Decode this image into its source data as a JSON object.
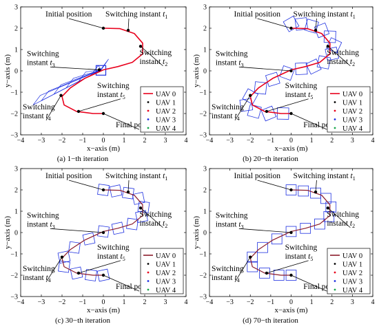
{
  "chart_data": [
    {
      "type": "line",
      "caption": "(a) 1−th iteration",
      "xlabel": "x−axis (m)",
      "ylabel": "y−axis (m)",
      "xlim": [
        -4,
        4
      ],
      "ylim": [
        -3,
        3
      ],
      "xticks": [
        "−4",
        "−3",
        "−2",
        "−1",
        "0",
        "1",
        "2",
        "3",
        "4"
      ],
      "yticks": [
        "−3",
        "−2",
        "−1",
        "0",
        "1",
        "2",
        "3"
      ],
      "legend": {
        "placement": "bottom-right",
        "entries": [
          "UAV 0",
          "UAV 1",
          "UAV 2",
          "UAV 3",
          "UAV 4"
        ]
      },
      "annotations": [
        {
          "text": "Initial position",
          "target": [
            0,
            2
          ]
        },
        {
          "text": "Switching instant",
          "sub": "1",
          "target": [
            1.2,
            1.9
          ]
        },
        {
          "text": "Switching\ninstant",
          "sub": "2",
          "target": [
            1.8,
            1.15
          ]
        },
        {
          "text": "Switching\ninstant",
          "sub": "3",
          "target": [
            -0.2,
            0.05
          ]
        },
        {
          "text": "Switching\ninstant",
          "sub": "4",
          "target": [
            -2.05,
            -1.15
          ]
        },
        {
          "text": "Switching\ninstant",
          "sub": "5",
          "target": [
            -1.2,
            -1.9
          ]
        },
        {
          "text": "Final position",
          "target": [
            0,
            -2
          ]
        }
      ],
      "series": [
        {
          "name": "UAV 0",
          "x": [
            0,
            0.8,
            1.5,
            1.9,
            1.9,
            1.4,
            0.7,
            0,
            -0.9,
            -1.6,
            -2,
            -1.9,
            -1.3,
            -0.5,
            0
          ],
          "y": [
            2,
            1.98,
            1.75,
            1.3,
            0.8,
            0.4,
            0.2,
            0.05,
            -0.35,
            -0.8,
            -1.2,
            -1.6,
            -1.9,
            -2,
            -2
          ]
        }
      ],
      "formation_points": [
        [
          -0.1,
          0.1
        ],
        [
          -0.6,
          -0.2
        ],
        [
          -1.2,
          -0.5
        ],
        [
          -1.8,
          -0.8
        ],
        [
          -2.4,
          -1.1
        ],
        [
          -3,
          -1.4
        ],
        [
          -3.4,
          -1.6
        ]
      ]
    },
    {
      "type": "line",
      "caption": "(b) 20−th iteration",
      "xlabel": "x−axis (m)",
      "ylabel": "y−axis (m)",
      "xlim": [
        -4,
        4
      ],
      "ylim": [
        -3,
        3
      ],
      "xticks": [
        "−4",
        "−3",
        "−2",
        "−1",
        "0",
        "1",
        "2",
        "3",
        "4"
      ],
      "yticks": [
        "−3",
        "−2",
        "−1",
        "0",
        "1",
        "2",
        "3"
      ],
      "legend": {
        "placement": "bottom-right",
        "entries": [
          "UAV 0",
          "UAV 1",
          "UAV 2",
          "UAV 3",
          "UAV 4"
        ]
      },
      "annotations": [
        {
          "text": "Initial position",
          "target": [
            0,
            2
          ]
        },
        {
          "text": "Switching instant",
          "sub": "1",
          "target": [
            1.2,
            1.9
          ]
        },
        {
          "text": "Switching\ninstant",
          "sub": "2",
          "target": [
            1.8,
            1.15
          ]
        },
        {
          "text": "Switching\ninstant",
          "sub": "3",
          "target": [
            0,
            0
          ]
        },
        {
          "text": "Switching\ninstant",
          "sub": "4",
          "target": [
            -2,
            -1.15
          ]
        },
        {
          "text": "Switching\ninstant",
          "sub": "5",
          "target": [
            -1.2,
            -1.9
          ]
        },
        {
          "text": "Final position",
          "target": [
            0,
            -2
          ]
        }
      ],
      "series": [
        {
          "name": "UAV 0",
          "x": [
            0,
            0.8,
            1.5,
            1.9,
            1.9,
            1.4,
            0.7,
            0,
            -0.9,
            -1.6,
            -2,
            -1.9,
            -1.3,
            -0.5,
            0
          ],
          "y": [
            2,
            1.98,
            1.75,
            1.3,
            0.8,
            0.4,
            0.2,
            0.05,
            -0.35,
            -0.8,
            -1.2,
            -1.6,
            -1.9,
            -2,
            -2
          ]
        }
      ],
      "formation_points": [
        [
          0,
          2.2
        ],
        [
          0.5,
          2.2
        ],
        [
          1,
          2.1
        ],
        [
          1.5,
          1.9
        ],
        [
          1.9,
          1.6
        ],
        [
          2.1,
          1.2
        ],
        [
          2,
          0.8
        ],
        [
          1.6,
          0.4
        ],
        [
          1.1,
          0.2
        ],
        [
          0.5,
          0.1
        ],
        [
          -0.2,
          -0.1
        ],
        [
          -0.9,
          -0.4
        ],
        [
          -1.5,
          -0.8
        ],
        [
          -2,
          -1.2
        ],
        [
          -2.2,
          -1.6
        ],
        [
          -1.8,
          -1.9
        ],
        [
          -1.1,
          -2
        ],
        [
          -0.4,
          -2
        ]
      ]
    },
    {
      "type": "line",
      "caption": "(c) 30−th iteration",
      "xlabel": "x−axis (m)",
      "ylabel": "y−axis (m)",
      "xlim": [
        -4,
        4
      ],
      "ylim": [
        -3,
        3
      ],
      "xticks": [
        "−4",
        "−3",
        "−2",
        "−1",
        "0",
        "1",
        "2",
        "3",
        "4"
      ],
      "yticks": [
        "−3",
        "−2",
        "−1",
        "0",
        "1",
        "2",
        "3"
      ],
      "legend": {
        "placement": "bottom-right",
        "entries": [
          "UAV 0",
          "UAV 1",
          "UAV 2",
          "UAV 3",
          "UAV 4"
        ]
      },
      "annotations": [
        {
          "text": "Initial position",
          "target": [
            0,
            2
          ]
        },
        {
          "text": "Switching instant",
          "sub": "1",
          "target": [
            1.2,
            1.9
          ]
        },
        {
          "text": "Switching\ninstant",
          "sub": "2",
          "target": [
            1.8,
            1.15
          ]
        },
        {
          "text": "Switching\ninstant",
          "sub": "3",
          "target": [
            0,
            0
          ]
        },
        {
          "text": "Switching\ninstant",
          "sub": "4",
          "target": [
            -2,
            -1.15
          ]
        },
        {
          "text": "Switching\ninstant",
          "sub": "5",
          "target": [
            -1.2,
            -1.9
          ]
        },
        {
          "text": "Final position",
          "target": [
            0,
            -2
          ]
        }
      ],
      "series": [
        {
          "name": "UAV 0",
          "x": [
            0,
            0.8,
            1.5,
            1.9,
            1.9,
            1.4,
            0.7,
            0,
            -0.9,
            -1.6,
            -2,
            -1.9,
            -1.3,
            -0.5,
            0
          ],
          "y": [
            2,
            1.98,
            1.75,
            1.3,
            0.8,
            0.4,
            0.2,
            0.05,
            -0.35,
            -0.8,
            -1.2,
            -1.6,
            -1.9,
            -2,
            -2
          ]
        }
      ],
      "formation_points": [
        [
          0,
          2
        ],
        [
          0.6,
          1.95
        ],
        [
          1.2,
          1.85
        ],
        [
          1.7,
          1.6
        ],
        [
          1.95,
          1.2
        ],
        [
          1.85,
          0.75
        ],
        [
          1.4,
          0.4
        ],
        [
          0.7,
          0.2
        ],
        [
          0,
          0.05
        ],
        [
          -0.7,
          -0.3
        ],
        [
          -1.4,
          -0.7
        ],
        [
          -1.9,
          -1.15
        ],
        [
          -1.9,
          -1.6
        ],
        [
          -1.3,
          -1.9
        ],
        [
          -0.6,
          -2
        ],
        [
          0,
          -2
        ]
      ]
    },
    {
      "type": "line",
      "caption": "(d) 70−th iteration",
      "xlabel": "x−axis (m)",
      "ylabel": "y−axis (m)",
      "xlim": [
        -4,
        4
      ],
      "ylim": [
        -3,
        3
      ],
      "xticks": [
        "−4",
        "−3",
        "−2",
        "−1",
        "0",
        "1",
        "2",
        "3",
        "4"
      ],
      "yticks": [
        "−3",
        "−2",
        "−1",
        "0",
        "1",
        "2",
        "3"
      ],
      "legend": {
        "placement": "bottom-right",
        "entries": [
          "UAV 0",
          "UAV 1",
          "UAV 2",
          "UAV 3",
          "UAV 4"
        ]
      },
      "annotations": [
        {
          "text": "Initial position",
          "target": [
            0,
            2
          ]
        },
        {
          "text": "Switching instant",
          "sub": "1",
          "target": [
            1.2,
            1.9
          ]
        },
        {
          "text": "Switching\ninstant",
          "sub": "2",
          "target": [
            1.8,
            1.15
          ]
        },
        {
          "text": "Switching\ninstant",
          "sub": "3",
          "target": [
            0,
            0
          ]
        },
        {
          "text": "Switching\ninstant",
          "sub": "4",
          "target": [
            -2,
            -1.15
          ]
        },
        {
          "text": "Switching\ninstant",
          "sub": "5",
          "target": [
            -1.2,
            -1.9
          ]
        },
        {
          "text": "Final position",
          "target": [
            0,
            -2
          ]
        }
      ],
      "series": [
        {
          "name": "UAV 0",
          "x": [
            0,
            0.8,
            1.5,
            1.9,
            1.9,
            1.4,
            0.7,
            0,
            -0.9,
            -1.6,
            -2,
            -1.9,
            -1.3,
            -0.5,
            0
          ],
          "y": [
            2,
            1.98,
            1.75,
            1.3,
            0.8,
            0.4,
            0.2,
            0.05,
            -0.35,
            -0.8,
            -1.2,
            -1.6,
            -1.9,
            -2,
            -2
          ]
        }
      ],
      "formation_points": [
        [
          0,
          2
        ],
        [
          0.6,
          1.95
        ],
        [
          1.2,
          1.85
        ],
        [
          1.7,
          1.6
        ],
        [
          1.95,
          1.2
        ],
        [
          1.85,
          0.75
        ],
        [
          1.4,
          0.4
        ],
        [
          0.7,
          0.2
        ],
        [
          0,
          0.05
        ],
        [
          -0.7,
          -0.3
        ],
        [
          -1.4,
          -0.7
        ],
        [
          -1.9,
          -1.15
        ],
        [
          -1.9,
          -1.6
        ],
        [
          -1.3,
          -1.9
        ],
        [
          -0.6,
          -2
        ],
        [
          0,
          -2
        ]
      ]
    }
  ],
  "colors": {
    "leader_line": "#e8001c",
    "formation": "#1d2fe0",
    "uav1": "#000000",
    "uav2": "#e8001c",
    "uav3": "#1d2fe0",
    "uav4": "#17a84b"
  }
}
